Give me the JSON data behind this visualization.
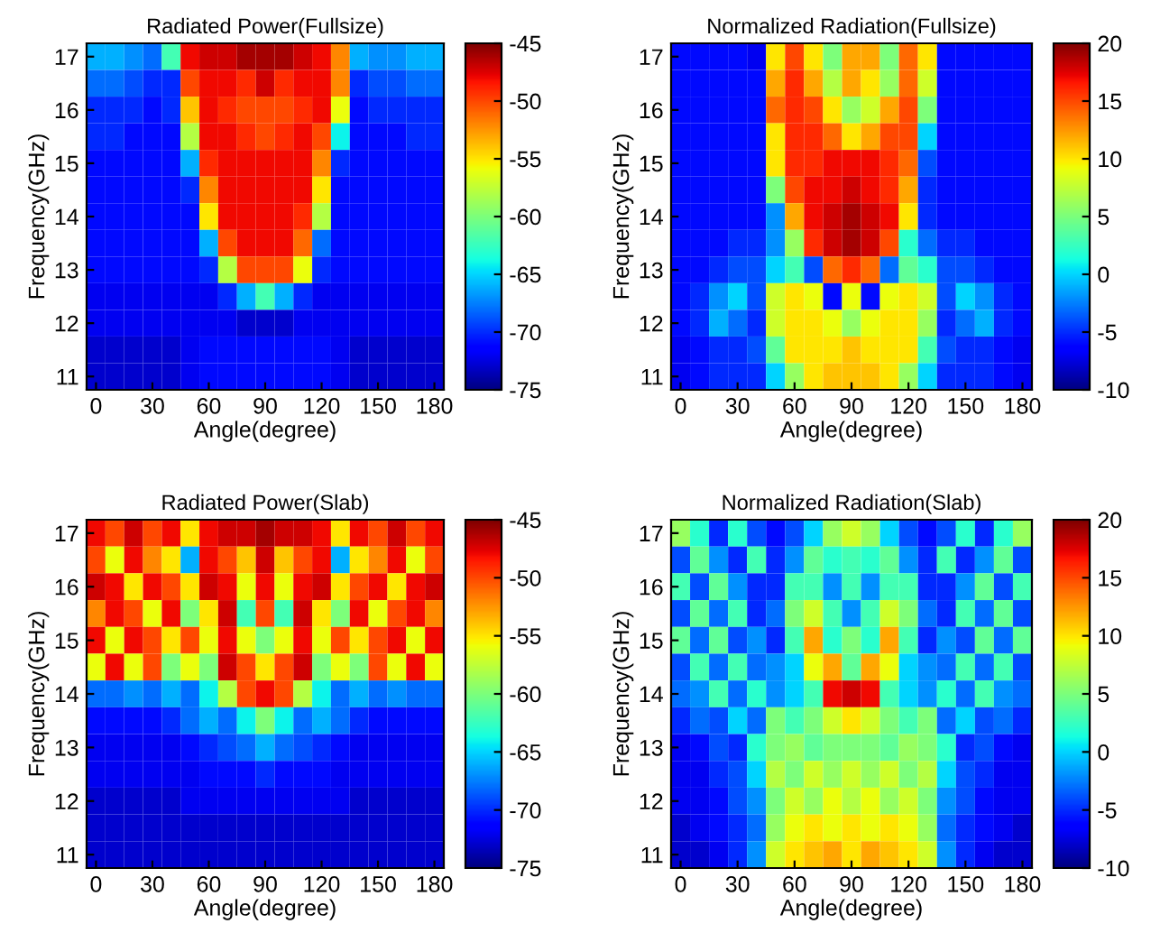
{
  "chart_data": [
    {
      "type": "heatmap",
      "title": "Radiated Power(Fullsize)",
      "xlabel": "Angle(degree)",
      "ylabel": "Frequency(GHz)",
      "categories": [
        "0",
        null,
        null,
        "30",
        null,
        null,
        "60",
        null,
        null,
        "90",
        null,
        null,
        "120",
        null,
        null,
        "150",
        null,
        null,
        "180"
      ],
      "y_categories": [
        "17",
        null,
        "16",
        null,
        "15",
        null,
        "14",
        null,
        "13",
        null,
        "12",
        null,
        "11"
      ],
      "clim": [
        -75,
        -45
      ],
      "cticks": [
        -75,
        -70,
        -65,
        -60,
        -55,
        -50,
        -45
      ],
      "cells": [
        [
          -66,
          -66,
          -67,
          -68,
          -62,
          -48,
          -47,
          -47,
          -46,
          -46,
          -46,
          -47,
          -48,
          -52,
          -66,
          -67,
          -67,
          -66,
          -66
        ],
        [
          -68,
          -68,
          -69,
          -70,
          -70,
          -50,
          -48,
          -48,
          -49,
          -47,
          -49,
          -48,
          -48,
          -52,
          -70,
          -69,
          -69,
          -68,
          -68
        ],
        [
          -70,
          -70,
          -70,
          -71,
          -70,
          -54,
          -48,
          -49,
          -50,
          -50,
          -50,
          -49,
          -48,
          -56,
          -71,
          -70,
          -70,
          -70,
          -70
        ],
        [
          -70,
          -70,
          -71,
          -71,
          -71,
          -58,
          -48,
          -48,
          -49,
          -50,
          -49,
          -48,
          -50,
          -64,
          -71,
          -71,
          -71,
          -70,
          -70
        ],
        [
          -71,
          -71,
          -71,
          -71,
          -71,
          -66,
          -49,
          -48,
          -48,
          -48,
          -48,
          -48,
          -52,
          -70,
          -71,
          -71,
          -71,
          -71,
          -71
        ],
        [
          -71,
          -71,
          -71,
          -71,
          -71,
          -70,
          -52,
          -48,
          -48,
          -48,
          -48,
          -48,
          -55,
          -71,
          -71,
          -71,
          -71,
          -71,
          -71
        ],
        [
          -71,
          -71,
          -71,
          -71,
          -71,
          -71,
          -55,
          -48,
          -48,
          -48,
          -48,
          -49,
          -58,
          -71,
          -71,
          -71,
          -71,
          -71,
          -71
        ],
        [
          -71,
          -71,
          -71,
          -71,
          -71,
          -71,
          -66,
          -50,
          -48,
          -48,
          -48,
          -51,
          -68,
          -71,
          -71,
          -71,
          -71,
          -71,
          -71
        ],
        [
          -71,
          -71,
          -71,
          -71,
          -71,
          -71,
          -70,
          -58,
          -50,
          -50,
          -50,
          -56,
          -70,
          -71,
          -71,
          -71,
          -71,
          -71,
          -71
        ],
        [
          -72,
          -72,
          -72,
          -72,
          -72,
          -72,
          -72,
          -70,
          -66,
          -62,
          -66,
          -70,
          -72,
          -72,
          -72,
          -72,
          -72,
          -72,
          -72
        ],
        [
          -72,
          -72,
          -72,
          -72,
          -72,
          -72,
          -72,
          -72,
          -73,
          -73,
          -73,
          -72,
          -72,
          -72,
          -72,
          -72,
          -72,
          -72,
          -72
        ],
        [
          -73,
          -73,
          -73,
          -73,
          -73,
          -72,
          -71,
          -71,
          -71,
          -71,
          -71,
          -71,
          -71,
          -72,
          -73,
          -73,
          -73,
          -73,
          -73
        ],
        [
          -73,
          -73,
          -73,
          -73,
          -73,
          -72,
          -71,
          -71,
          -71,
          -71,
          -71,
          -71,
          -71,
          -72,
          -73,
          -73,
          -73,
          -73,
          -73
        ]
      ]
    },
    {
      "type": "heatmap",
      "title": "Normalized Radiation(Fullsize)",
      "xlabel": "Angle(degree)",
      "ylabel": "Frequency(GHz)",
      "categories": [
        "0",
        null,
        null,
        "30",
        null,
        null,
        "60",
        null,
        null,
        "90",
        null,
        null,
        "120",
        null,
        null,
        "150",
        null,
        null,
        "180"
      ],
      "y_categories": [
        "17",
        null,
        "16",
        null,
        "15",
        null,
        "14",
        null,
        "13",
        null,
        "12",
        null,
        "11"
      ],
      "clim": [
        -10,
        20
      ],
      "cticks": [
        -10,
        -5,
        0,
        5,
        10,
        15,
        20
      ],
      "cells": [
        [
          -6,
          -6,
          -6,
          -6,
          -7,
          10,
          15,
          10,
          5,
          12,
          12,
          5,
          14,
          10,
          -6,
          -6,
          -6,
          -6,
          -6
        ],
        [
          -6,
          -6,
          -6,
          -6,
          -6,
          12,
          16,
          12,
          7,
          12,
          10,
          6,
          14,
          8,
          -6,
          -6,
          -6,
          -6,
          -6
        ],
        [
          -6,
          -6,
          -6,
          -6,
          -6,
          14,
          16,
          15,
          10,
          6,
          8,
          12,
          15,
          5,
          -6,
          -6,
          -6,
          -6,
          -6
        ],
        [
          -6,
          -6,
          -6,
          -6,
          -6,
          10,
          16,
          16,
          14,
          10,
          12,
          15,
          15,
          0,
          -6,
          -6,
          -6,
          -6,
          -6
        ],
        [
          -6,
          -6,
          -6,
          -6,
          -6,
          10,
          16,
          16,
          17,
          17,
          17,
          16,
          14,
          -4,
          -6,
          -6,
          -6,
          -6,
          -6
        ],
        [
          -6,
          -6,
          -6,
          -6,
          -6,
          5,
          15,
          17,
          17,
          18,
          17,
          16,
          12,
          -5,
          -6,
          -6,
          -6,
          -6,
          -6
        ],
        [
          -6,
          -6,
          -6,
          -6,
          -6,
          -2,
          12,
          17,
          18,
          19,
          18,
          17,
          10,
          -5,
          -6,
          -6,
          -6,
          -6,
          -6
        ],
        [
          -6,
          -6,
          -6,
          -5,
          -5,
          -2,
          6,
          16,
          18,
          19,
          18,
          15,
          2,
          -3,
          -5,
          -5,
          -6,
          -6,
          -6
        ],
        [
          -6,
          -6,
          -5,
          -4,
          -4,
          0,
          3,
          -4,
          14,
          16,
          14,
          -3,
          4,
          2,
          -4,
          -4,
          -5,
          -6,
          -6
        ],
        [
          -6,
          -5,
          -2,
          0,
          -4,
          8,
          10,
          9,
          -6,
          9,
          -6,
          9,
          10,
          8,
          -4,
          0,
          -2,
          -5,
          -6
        ],
        [
          -6,
          -5,
          -1,
          -3,
          -5,
          8,
          10,
          10,
          9,
          6,
          9,
          10,
          10,
          6,
          -5,
          -3,
          -1,
          -5,
          -6
        ],
        [
          -7,
          -6,
          -5,
          -5,
          -4,
          4,
          10,
          10,
          10,
          11,
          10,
          10,
          10,
          3,
          -4,
          -5,
          -5,
          -6,
          -7
        ],
        [
          -7,
          -6,
          -5,
          -5,
          -5,
          0,
          6,
          10,
          11,
          11,
          11,
          10,
          6,
          0,
          -5,
          -5,
          -5,
          -6,
          -7
        ]
      ]
    },
    {
      "type": "heatmap",
      "title": "Radiated Power(Slab)",
      "xlabel": "Angle(degree)",
      "ylabel": "Frequency(GHz)",
      "categories": [
        "0",
        null,
        null,
        "30",
        null,
        null,
        "60",
        null,
        null,
        "90",
        null,
        null,
        "120",
        null,
        null,
        "150",
        null,
        null,
        "180"
      ],
      "y_categories": [
        "17",
        null,
        "16",
        null,
        "15",
        null,
        "14",
        null,
        "13",
        null,
        "12",
        null,
        "11"
      ],
      "clim": [
        -75,
        -45
      ],
      "cticks": [
        -75,
        -70,
        -65,
        -60,
        -55,
        -50,
        -45
      ],
      "cells": [
        [
          -48,
          -50,
          -47,
          -50,
          -48,
          -55,
          -48,
          -47,
          -47,
          -46,
          -47,
          -47,
          -48,
          -55,
          -48,
          -50,
          -47,
          -50,
          -48
        ],
        [
          -50,
          -56,
          -48,
          -52,
          -55,
          -66,
          -48,
          -50,
          -54,
          -47,
          -54,
          -50,
          -48,
          -66,
          -55,
          -52,
          -48,
          -56,
          -50
        ],
        [
          -47,
          -48,
          -55,
          -48,
          -50,
          -55,
          -47,
          -48,
          -56,
          -48,
          -56,
          -48,
          -47,
          -55,
          -50,
          -48,
          -55,
          -48,
          -47
        ],
        [
          -52,
          -48,
          -50,
          -56,
          -48,
          -60,
          -55,
          -47,
          -62,
          -50,
          -62,
          -47,
          -55,
          -60,
          -48,
          -56,
          -50,
          -48,
          -52
        ],
        [
          -48,
          -56,
          -48,
          -50,
          -55,
          -50,
          -56,
          -48,
          -56,
          -60,
          -56,
          -48,
          -56,
          -50,
          -55,
          -50,
          -48,
          -56,
          -48
        ],
        [
          -56,
          -48,
          -56,
          -50,
          -60,
          -56,
          -60,
          -47,
          -50,
          -55,
          -50,
          -47,
          -60,
          -56,
          -60,
          -50,
          -56,
          -48,
          -56
        ],
        [
          -68,
          -68,
          -67,
          -68,
          -66,
          -68,
          -64,
          -58,
          -50,
          -48,
          -50,
          -58,
          -64,
          -68,
          -66,
          -68,
          -67,
          -68,
          -68
        ],
        [
          -71,
          -71,
          -71,
          -71,
          -70,
          -68,
          -66,
          -68,
          -64,
          -60,
          -64,
          -68,
          -66,
          -68,
          -70,
          -71,
          -71,
          -71,
          -71
        ],
        [
          -72,
          -72,
          -72,
          -72,
          -72,
          -71,
          -70,
          -69,
          -68,
          -66,
          -68,
          -69,
          -70,
          -71,
          -72,
          -72,
          -72,
          -72,
          -72
        ],
        [
          -72,
          -72,
          -72,
          -72,
          -72,
          -72,
          -71,
          -71,
          -71,
          -70,
          -71,
          -71,
          -71,
          -72,
          -72,
          -72,
          -72,
          -72,
          -72
        ],
        [
          -73,
          -73,
          -73,
          -73,
          -73,
          -72,
          -72,
          -72,
          -72,
          -72,
          -72,
          -72,
          -72,
          -72,
          -73,
          -73,
          -73,
          -73,
          -73
        ],
        [
          -73,
          -73,
          -73,
          -73,
          -73,
          -73,
          -73,
          -73,
          -73,
          -73,
          -73,
          -73,
          -73,
          -73,
          -73,
          -73,
          -73,
          -73,
          -73
        ],
        [
          -73,
          -73,
          -73,
          -73,
          -73,
          -73,
          -73,
          -73,
          -73,
          -73,
          -73,
          -73,
          -73,
          -73,
          -73,
          -73,
          -73,
          -73,
          -73
        ]
      ]
    },
    {
      "type": "heatmap",
      "title": "Normalized Radiation(Slab)",
      "xlabel": "Angle(degree)",
      "ylabel": "Frequency(GHz)",
      "categories": [
        "0",
        null,
        null,
        "30",
        null,
        null,
        "60",
        null,
        null,
        "90",
        null,
        null,
        "120",
        null,
        null,
        "150",
        null,
        null,
        "180"
      ],
      "y_categories": [
        "17",
        null,
        "16",
        null,
        "15",
        null,
        "14",
        null,
        "13",
        null,
        "12",
        null,
        "11"
      ],
      "clim": [
        -10,
        20
      ],
      "cticks": [
        -10,
        -5,
        0,
        5,
        10,
        15,
        20
      ],
      "cells": [
        [
          6,
          2,
          -5,
          2,
          -4,
          -6,
          -4,
          0,
          6,
          8,
          6,
          0,
          -4,
          -6,
          -4,
          2,
          -5,
          2,
          6
        ],
        [
          -4,
          4,
          -2,
          -5,
          3,
          -5,
          -2,
          4,
          2,
          3,
          2,
          4,
          -2,
          -5,
          3,
          -5,
          -2,
          4,
          -4
        ],
        [
          3,
          -4,
          4,
          -2,
          -5,
          -5,
          3,
          3,
          -2,
          3,
          -2,
          3,
          3,
          -5,
          -5,
          -2,
          4,
          -4,
          3
        ],
        [
          -4,
          4,
          -3,
          3,
          -5,
          -3,
          5,
          8,
          3,
          -2,
          3,
          8,
          5,
          -3,
          -5,
          3,
          -3,
          4,
          -4
        ],
        [
          4,
          -3,
          4,
          -4,
          -2,
          -5,
          3,
          12,
          2,
          5,
          2,
          12,
          3,
          -5,
          -2,
          -4,
          4,
          -3,
          4
        ],
        [
          -4,
          3,
          -3,
          3,
          -3,
          -2,
          0,
          9,
          12,
          4,
          12,
          9,
          0,
          -2,
          -3,
          3,
          -3,
          3,
          -4
        ],
        [
          -3,
          -2,
          3,
          -3,
          2,
          -2,
          0,
          3,
          17,
          18,
          17,
          3,
          0,
          -2,
          2,
          -3,
          3,
          -2,
          -3
        ],
        [
          -5,
          -3,
          -4,
          0,
          -3,
          5,
          3,
          5,
          8,
          10,
          8,
          5,
          3,
          5,
          -3,
          0,
          -4,
          -3,
          -5
        ],
        [
          -7,
          -6,
          -4,
          -5,
          2,
          5,
          6,
          4,
          5,
          5,
          5,
          4,
          6,
          5,
          2,
          -5,
          -4,
          -6,
          -7
        ],
        [
          -7,
          -7,
          -5,
          -4,
          0,
          7,
          5,
          8,
          6,
          8,
          6,
          8,
          5,
          7,
          0,
          -4,
          -5,
          -7,
          -7
        ],
        [
          -7,
          -7,
          -6,
          -4,
          -2,
          5,
          8,
          6,
          9,
          7,
          9,
          6,
          8,
          5,
          -2,
          -4,
          -6,
          -7,
          -7
        ],
        [
          -8,
          -7,
          -6,
          -5,
          -3,
          6,
          9,
          10,
          9,
          10,
          9,
          10,
          9,
          6,
          -3,
          -5,
          -6,
          -7,
          -8
        ],
        [
          -8,
          -8,
          -7,
          -5,
          -2,
          8,
          10,
          11,
          12,
          10,
          12,
          11,
          10,
          8,
          -2,
          -5,
          -7,
          -8,
          -8
        ]
      ]
    }
  ]
}
